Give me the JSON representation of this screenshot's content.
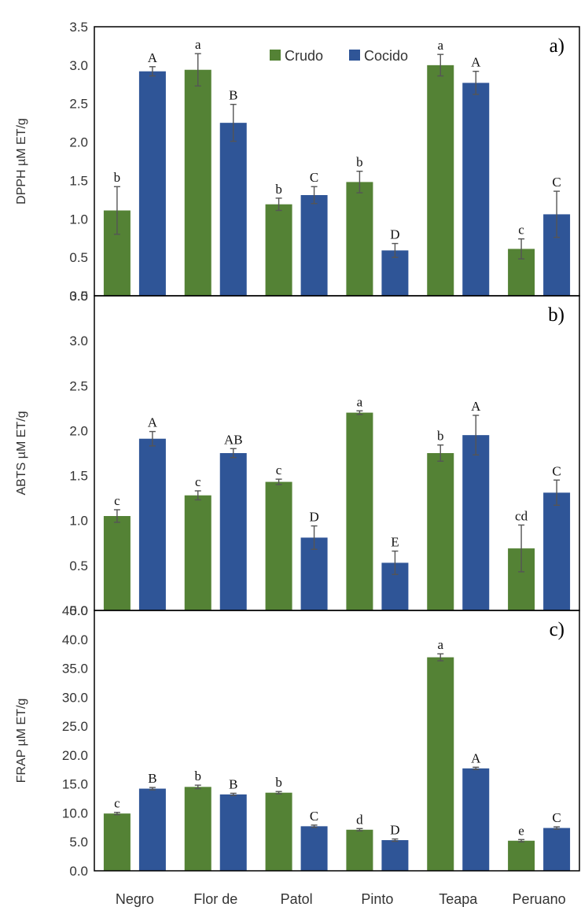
{
  "colors": {
    "crudo": "#548235",
    "cocido": "#2f5597",
    "error": "#555555",
    "axis": "#000000"
  },
  "legend": {
    "crudo": "Crudo",
    "cocido": "Cocido"
  },
  "categories": [
    "Negro",
    "Flor de",
    "Patol",
    "Pinto",
    "Teapa",
    "Peruano"
  ],
  "chart_data": [
    {
      "type": "bar",
      "panel_label": "a)",
      "ylabel": "DPPH µM ET/g",
      "ylim": [
        0,
        3.5
      ],
      "yticks": [
        "0.0",
        "0.5",
        "1.0",
        "1.5",
        "2.0",
        "2.5",
        "3.0",
        "3.5"
      ],
      "show_legend": true,
      "categories": [
        "Negro",
        "Flor de",
        "Patol",
        "Pinto",
        "Teapa",
        "Peruano"
      ],
      "series": [
        {
          "name": "Crudo",
          "values": [
            1.11,
            2.94,
            1.19,
            1.48,
            3.0,
            0.61
          ],
          "errors": [
            0.31,
            0.21,
            0.08,
            0.14,
            0.14,
            0.13
          ],
          "letters": [
            "b",
            "a",
            "b",
            "b",
            "a",
            "c"
          ]
        },
        {
          "name": "Cocido",
          "values": [
            2.92,
            2.25,
            1.31,
            0.59,
            2.77,
            1.06
          ],
          "errors": [
            0.06,
            0.24,
            0.11,
            0.09,
            0.15,
            0.3
          ],
          "letters": [
            "A",
            "B",
            "C",
            "D",
            "A",
            "C"
          ]
        }
      ]
    },
    {
      "type": "bar",
      "panel_label": "b)",
      "ylabel": "ABTS µM ET/g",
      "ylim": [
        0,
        3.5
      ],
      "yticks": [
        "0.0",
        "0.5",
        "1.0",
        "1.5",
        "2.0",
        "2.5",
        "3.0",
        "3.5"
      ],
      "show_legend": false,
      "categories": [
        "Negro",
        "Flor de",
        "Patol",
        "Pinto",
        "Teapa",
        "Peruano"
      ],
      "series": [
        {
          "name": "Crudo",
          "values": [
            1.05,
            1.28,
            1.43,
            2.2,
            1.75,
            0.69
          ],
          "errors": [
            0.07,
            0.05,
            0.03,
            0.02,
            0.09,
            0.26
          ],
          "letters": [
            "c",
            "c",
            "c",
            "a",
            "b",
            "cd"
          ]
        },
        {
          "name": "Cocido",
          "values": [
            1.91,
            1.75,
            0.81,
            0.53,
            1.95,
            1.31
          ],
          "errors": [
            0.08,
            0.05,
            0.13,
            0.13,
            0.22,
            0.14
          ],
          "letters": [
            "A",
            "AB",
            "D",
            "E",
            "A",
            "C"
          ]
        }
      ]
    },
    {
      "type": "bar",
      "panel_label": "c)",
      "ylabel": "FRAP µM ET/g",
      "ylim": [
        0,
        45
      ],
      "yticks": [
        "0.0",
        "5.0",
        "10.0",
        "15.0",
        "20.0",
        "25.0",
        "30.0",
        "35.0",
        "40.0",
        "45.0"
      ],
      "show_legend": false,
      "categories": [
        "Negro",
        "Flor de",
        "Patol",
        "Pinto",
        "Teapa",
        "Peruano"
      ],
      "series": [
        {
          "name": "Crudo",
          "values": [
            9.9,
            14.5,
            13.5,
            7.1,
            36.9,
            5.2
          ],
          "errors": [
            0.2,
            0.3,
            0.2,
            0.2,
            0.6,
            0.2
          ],
          "letters": [
            "c",
            "b",
            "b",
            "d",
            "a",
            "e"
          ]
        },
        {
          "name": "Cocido",
          "values": [
            14.2,
            13.2,
            7.7,
            5.3,
            17.7,
            7.4
          ],
          "errors": [
            0.2,
            0.2,
            0.2,
            0.2,
            0.2,
            0.2
          ],
          "letters": [
            "B",
            "B",
            "C",
            "D",
            "A",
            "C"
          ]
        }
      ]
    }
  ]
}
